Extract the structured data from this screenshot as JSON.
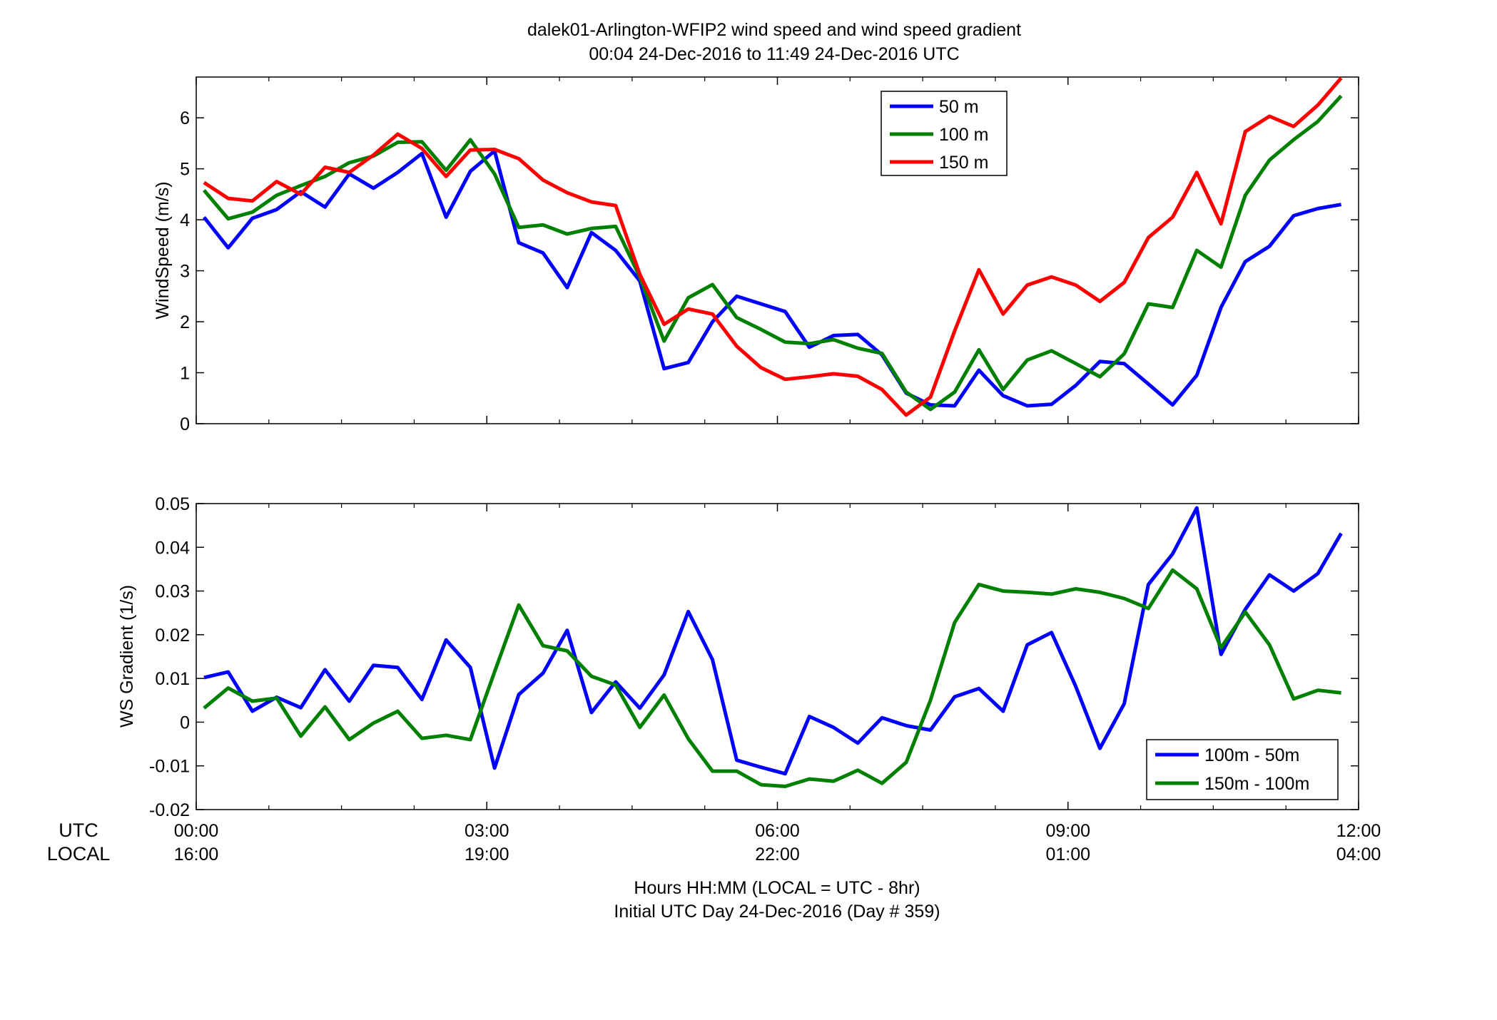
{
  "figure": {
    "title_line1": "dalek01-Arlington-WFIP2  wind speed and wind speed gradient",
    "title_line2": "00:04 24-Dec-2016 to 11:49 24-Dec-2016  UTC",
    "xlabel_line1": "Hours HH:MM  (LOCAL = UTC - 8hr)",
    "xlabel_line2": "Initial UTC Day 24-Dec-2016 (Day # 359)",
    "row_label_utc": "UTC",
    "row_label_local": "LOCAL",
    "x_ticks_utc": [
      "00:00",
      "03:00",
      "06:00",
      "09:00",
      "12:00"
    ],
    "x_ticks_local": [
      "16:00",
      "19:00",
      "22:00",
      "01:00",
      "04:00"
    ]
  },
  "chart_data": [
    {
      "type": "line",
      "ylabel": "WindSpeed (m/s)",
      "xlim": [
        0,
        12
      ],
      "ylim": [
        0,
        6.8
      ],
      "yticks": [
        0,
        1,
        2,
        3,
        4,
        5,
        6
      ],
      "legend_position": "top-right",
      "x": [
        0.08,
        0.33,
        0.58,
        0.83,
        1.08,
        1.33,
        1.58,
        1.83,
        2.08,
        2.33,
        2.58,
        2.83,
        3.08,
        3.33,
        3.58,
        3.83,
        4.08,
        4.33,
        4.58,
        4.83,
        5.08,
        5.33,
        5.58,
        5.83,
        6.08,
        6.33,
        6.58,
        6.83,
        7.08,
        7.33,
        7.58,
        7.83,
        8.08,
        8.33,
        8.58,
        8.83,
        9.08,
        9.33,
        9.58,
        9.83,
        10.08,
        10.33,
        10.58,
        10.83,
        11.08,
        11.33,
        11.58,
        11.82
      ],
      "series": [
        {
          "name": "50 m",
          "color": "#0000ff",
          "values": [
            4.05,
            3.45,
            4.03,
            4.2,
            4.55,
            4.25,
            4.9,
            4.62,
            4.93,
            5.3,
            4.05,
            4.95,
            5.35,
            3.55,
            3.35,
            2.67,
            3.75,
            3.4,
            2.8,
            1.08,
            1.2,
            2.0,
            2.5,
            2.35,
            2.2,
            1.5,
            1.73,
            1.75,
            1.35,
            0.6,
            0.37,
            0.35,
            1.05,
            0.55,
            0.35,
            0.38,
            0.75,
            1.22,
            1.18,
            0.78,
            0.37,
            0.95,
            2.28,
            3.18,
            3.48,
            4.08,
            4.22,
            4.3
          ]
        },
        {
          "name": "100 m",
          "color": "#008000",
          "values": [
            4.58,
            4.02,
            4.15,
            4.48,
            4.67,
            4.85,
            5.12,
            5.25,
            5.52,
            5.53,
            4.97,
            5.57,
            4.9,
            3.85,
            3.9,
            3.72,
            3.83,
            3.87,
            2.88,
            1.62,
            2.47,
            2.73,
            2.08,
            1.85,
            1.6,
            1.57,
            1.65,
            1.48,
            1.38,
            0.62,
            0.28,
            0.62,
            1.45,
            0.67,
            1.25,
            1.43,
            1.18,
            0.92,
            1.37,
            2.35,
            2.28,
            3.4,
            3.07,
            4.48,
            5.17,
            5.57,
            5.93,
            6.43
          ]
        },
        {
          "name": "150 m",
          "color": "#ff0000",
          "values": [
            4.73,
            4.42,
            4.37,
            4.75,
            4.5,
            5.03,
            4.93,
            5.27,
            5.68,
            5.4,
            4.85,
            5.37,
            5.38,
            5.2,
            4.78,
            4.53,
            4.35,
            4.28,
            2.93,
            1.95,
            2.25,
            2.15,
            1.52,
            1.1,
            0.87,
            0.92,
            0.98,
            0.93,
            0.67,
            0.17,
            0.52,
            1.82,
            3.02,
            2.15,
            2.72,
            2.88,
            2.72,
            2.4,
            2.77,
            3.65,
            4.05,
            4.93,
            3.92,
            5.73,
            6.03,
            5.83,
            6.25,
            6.78
          ]
        }
      ]
    },
    {
      "type": "line",
      "ylabel": "WS Gradient (1/s)",
      "xlim": [
        0,
        12
      ],
      "ylim": [
        -0.02,
        0.05
      ],
      "yticks": [
        -0.02,
        -0.01,
        0,
        0.01,
        0.02,
        0.03,
        0.04,
        0.05
      ],
      "ytick_labels": [
        "-0.02",
        "-0.01",
        "0",
        "0.01",
        "0.02",
        "0.03",
        "0.04",
        "0.05"
      ],
      "legend_position": "bottom-right",
      "x": [
        0.08,
        0.33,
        0.58,
        0.83,
        1.08,
        1.33,
        1.58,
        1.83,
        2.08,
        2.33,
        2.58,
        2.83,
        3.08,
        3.33,
        3.58,
        3.83,
        4.08,
        4.33,
        4.58,
        4.83,
        5.08,
        5.33,
        5.58,
        5.83,
        6.08,
        6.33,
        6.58,
        6.83,
        7.08,
        7.33,
        7.58,
        7.83,
        8.08,
        8.33,
        8.58,
        8.83,
        9.08,
        9.33,
        9.58,
        9.83,
        10.08,
        10.33,
        10.58,
        10.83,
        11.08,
        11.33,
        11.58,
        11.82
      ],
      "series": [
        {
          "name": "100m - 50m",
          "color": "#0000ff",
          "values": [
            0.0102,
            0.0115,
            0.0025,
            0.0057,
            0.0033,
            0.012,
            0.0048,
            0.013,
            0.0125,
            0.0052,
            0.0188,
            0.0125,
            -0.0105,
            0.0063,
            0.0112,
            0.021,
            0.0022,
            0.0092,
            0.0032,
            0.0108,
            0.0253,
            0.0143,
            -0.0087,
            -0.0103,
            -0.0118,
            0.0013,
            -0.0012,
            -0.0048,
            0.001,
            -0.0008,
            -0.0018,
            0.0058,
            0.0077,
            0.0025,
            0.0177,
            0.0205,
            0.0082,
            -0.006,
            0.0042,
            0.0315,
            0.0385,
            0.049,
            0.0155,
            0.0258,
            0.0337,
            0.03,
            0.034,
            0.0432
          ]
        },
        {
          "name": "150m - 100m",
          "color": "#008000",
          "values": [
            0.0032,
            0.0078,
            0.0048,
            0.0055,
            -0.0032,
            0.0035,
            -0.004,
            -0.0002,
            0.0025,
            -0.0037,
            -0.003,
            -0.004,
            0.0115,
            0.0268,
            0.0175,
            0.0163,
            0.0105,
            0.0085,
            -0.0012,
            0.0062,
            -0.0038,
            -0.0112,
            -0.0112,
            -0.0143,
            -0.0147,
            -0.013,
            -0.0135,
            -0.011,
            -0.014,
            -0.0092,
            0.005,
            0.0228,
            0.0315,
            0.03,
            0.0297,
            0.0293,
            0.0305,
            0.0297,
            0.0283,
            0.026,
            0.0348,
            0.0305,
            0.017,
            0.0252,
            0.0177,
            0.0053,
            0.0073,
            0.0067
          ]
        }
      ]
    }
  ]
}
